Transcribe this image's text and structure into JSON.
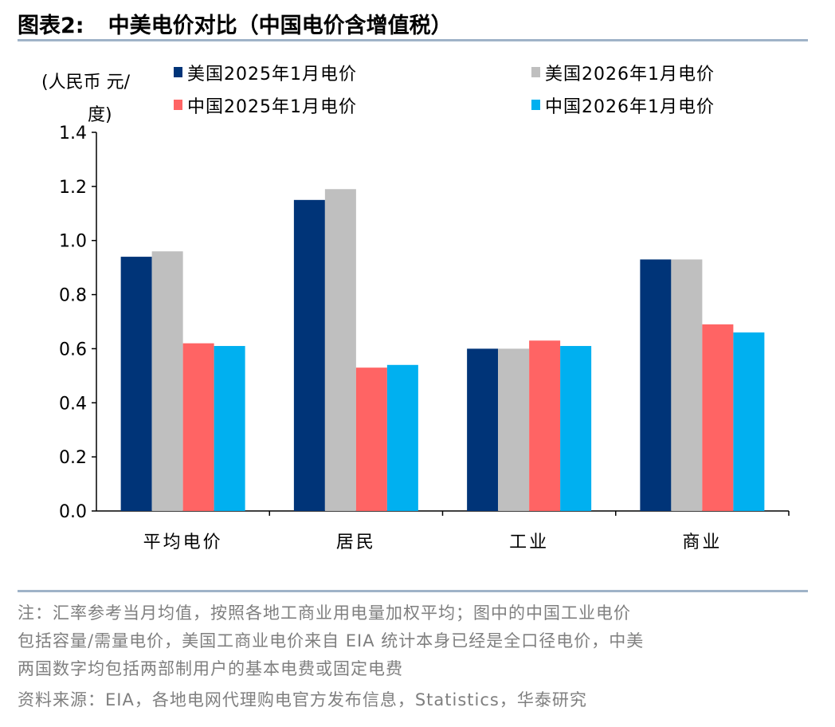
{
  "header": {
    "label": "图表2:",
    "title": "中美电价对比（中国电价含增值税）"
  },
  "chart_data": {
    "type": "bar",
    "ylabel": "(人民币 元/度)",
    "ylabel_lines": [
      "(人民币 元/",
      "度)"
    ],
    "categories": [
      "平均电价",
      "居民",
      "工业",
      "商业"
    ],
    "ylim": [
      0,
      1.4
    ],
    "yticks": [
      "0.0",
      "0.2",
      "0.4",
      "0.6",
      "0.8",
      "1.0",
      "1.2",
      "1.4"
    ],
    "grid": false,
    "legend_position": "top",
    "series": [
      {
        "name": "美国2025年1月电价",
        "color": "#003478",
        "values": [
          0.94,
          1.15,
          0.6,
          0.93
        ]
      },
      {
        "name": "美国2026年1月电价",
        "color": "#bfbfbf",
        "values": [
          0.96,
          1.19,
          0.6,
          0.93
        ]
      },
      {
        "name": "中国2025年1月电价",
        "color": "#ff6464",
        "values": [
          0.62,
          0.53,
          0.63,
          0.69
        ]
      },
      {
        "name": "中国2026年1月电价",
        "color": "#00b0f0",
        "values": [
          0.61,
          0.54,
          0.61,
          0.66
        ]
      }
    ]
  },
  "notes": {
    "line1": "注：汇率参考当月均值，按照各地工商业用电量加权平均；图中的中国工业电价",
    "line2": "包括容量/需量电价，美国工商业电价来自 EIA 统计本身已经是全口径电价，中美",
    "line3": "两国数字均包括两部制用户的基本电费或固定电费",
    "source": "资料来源：EIA，各地电网代理购电官方发布信息，Statistics，华泰研究"
  }
}
